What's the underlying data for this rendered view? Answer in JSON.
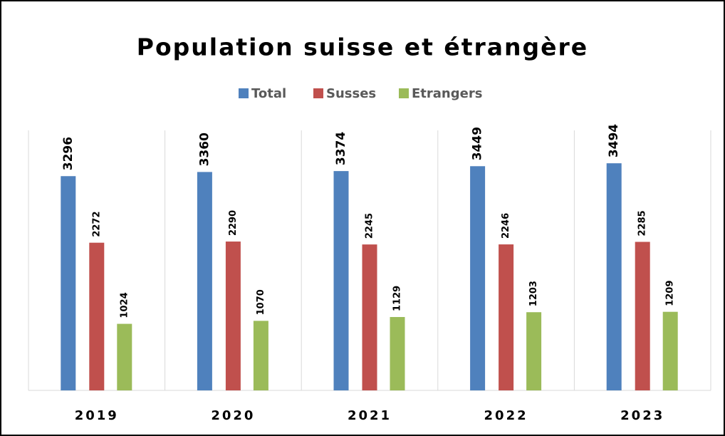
{
  "chart_data": {
    "type": "bar",
    "title": "Population suisse et étrangère",
    "categories": [
      "2019",
      "2020",
      "2021",
      "2022",
      "2023"
    ],
    "series": [
      {
        "name": "Total",
        "color": "#4f81bd",
        "values": [
          3296,
          3360,
          3374,
          3449,
          3494
        ]
      },
      {
        "name": "Susses",
        "color": "#c0504d",
        "values": [
          2272,
          2290,
          2245,
          2246,
          2285
        ]
      },
      {
        "name": "Etrangers",
        "color": "#9bbb59",
        "values": [
          1024,
          1070,
          1129,
          1203,
          1209
        ]
      }
    ],
    "ylim": [
      0,
      4000
    ],
    "legend": "top"
  }
}
